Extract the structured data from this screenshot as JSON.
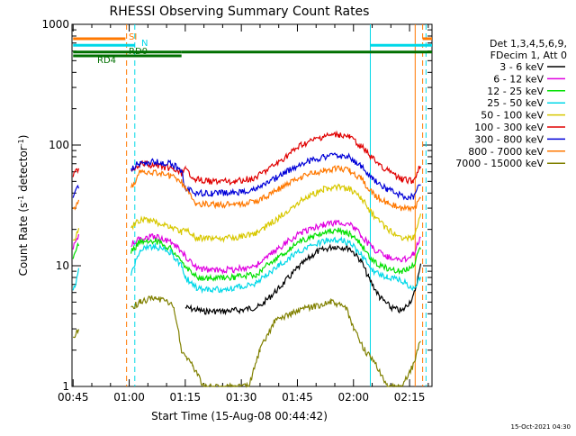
{
  "chart_data": {
    "type": "line",
    "title": "RHESSI Observing Summary Count Rates",
    "xlabel": "Start Time (15-Aug-08 00:44:42)",
    "ylabel_main": "Count Rate (s",
    "ylabel_sup1": "-1",
    "ylabel_mid": " detector",
    "ylabel_sup2": "-1",
    "ylabel_end": ")",
    "y_scale": "log",
    "ylim": [
      1,
      1000
    ],
    "xlim_minutes": [
      44.7,
      141
    ],
    "x_ticks": [
      {
        "m": 45,
        "label": "00:45"
      },
      {
        "m": 60,
        "label": "01:00"
      },
      {
        "m": 75,
        "label": "01:15"
      },
      {
        "m": 90,
        "label": "01:30"
      },
      {
        "m": 105,
        "label": "01:45"
      },
      {
        "m": 120,
        "label": "02:00"
      },
      {
        "m": 135,
        "label": "02:15"
      }
    ],
    "y_ticks": [
      {
        "v": 1,
        "label": "1"
      },
      {
        "v": 10,
        "label": "10"
      },
      {
        "v": 100,
        "label": "100"
      },
      {
        "v": 1000,
        "label": "1000"
      }
    ],
    "footer_date": "15-Oct-2021 04:30",
    "legend_header": [
      "Det 1,3,4,5,6,9,",
      "FDecim 1, Att 0"
    ],
    "series": [
      {
        "name": "3 - 6 keV",
        "color": "#000000",
        "segments": [
          [
            [
              75,
              4.5
            ],
            [
              80,
              4.2
            ],
            [
              85,
              4.2
            ],
            [
              90,
              4.3
            ],
            [
              95,
              4.6
            ],
            [
              100,
              6.5
            ],
            [
              105,
              9.5
            ],
            [
              110,
              13
            ],
            [
              115,
              14.5
            ],
            [
              119,
              14
            ],
            [
              122,
              11
            ],
            [
              124,
              8
            ],
            [
              127,
              5.5
            ],
            [
              130,
              4.5
            ],
            [
              133,
              4.2
            ],
            [
              136,
              5.5
            ],
            [
              138,
              10
            ]
          ]
        ]
      },
      {
        "name": "6 - 12 keV",
        "color": "#e000e0",
        "segments": [
          [
            [
              45,
              14
            ],
            [
              46.5,
              18
            ]
          ],
          [
            [
              60.5,
              15
            ],
            [
              63,
              17
            ],
            [
              67,
              17.5
            ],
            [
              71,
              16
            ],
            [
              74,
              13
            ],
            [
              75,
              12
            ],
            [
              78,
              9.5
            ],
            [
              82,
              9.2
            ],
            [
              88,
              9.3
            ],
            [
              94,
              10
            ],
            [
              100,
              14
            ],
            [
              106,
              19
            ],
            [
              112,
              22
            ],
            [
              116,
              23
            ],
            [
              119,
              22
            ],
            [
              122,
              18
            ],
            [
              125,
              14
            ],
            [
              129,
              12
            ],
            [
              133,
              11
            ],
            [
              136,
              12.5
            ],
            [
              138,
              18
            ]
          ]
        ]
      },
      {
        "name": "12 - 25 keV",
        "color": "#00e000",
        "segments": [
          [
            [
              45,
              12
            ],
            [
              46.5,
              15
            ]
          ],
          [
            [
              60.5,
              13
            ],
            [
              63,
              16
            ],
            [
              67,
              16
            ],
            [
              71,
              14
            ],
            [
              74,
              10.5
            ],
            [
              75,
              10
            ],
            [
              78,
              8
            ],
            [
              82,
              7.8
            ],
            [
              88,
              8
            ],
            [
              94,
              8.5
            ],
            [
              100,
              12
            ],
            [
              106,
              16
            ],
            [
              112,
              19
            ],
            [
              116,
              19.5
            ],
            [
              119,
              18.5
            ],
            [
              122,
              15
            ],
            [
              125,
              11
            ],
            [
              129,
              9.5
            ],
            [
              133,
              8.8
            ],
            [
              136,
              10
            ],
            [
              138,
              14
            ]
          ]
        ]
      },
      {
        "name": "25 - 50 keV",
        "color": "#00d8e8",
        "segments": [
          [
            [
              45,
              6
            ],
            [
              46.5,
              9
            ]
          ],
          [
            [
              60.5,
              8.5
            ],
            [
              63,
              14
            ],
            [
              67,
              14.5
            ],
            [
              71,
              13
            ],
            [
              74,
              10
            ],
            [
              75,
              8
            ],
            [
              78,
              6.5
            ],
            [
              82,
              6.3
            ],
            [
              88,
              6.5
            ],
            [
              94,
              7.2
            ],
            [
              100,
              10
            ],
            [
              106,
              13.5
            ],
            [
              112,
              16
            ],
            [
              116,
              16.5
            ],
            [
              119,
              15.5
            ],
            [
              122,
              12.5
            ],
            [
              125,
              9
            ],
            [
              129,
              8
            ],
            [
              133,
              7.5
            ],
            [
              136,
              6.5
            ],
            [
              138,
              8
            ]
          ]
        ]
      },
      {
        "name": "50 - 100 keV",
        "color": "#d8c800",
        "segments": [
          [
            [
              45,
              16
            ],
            [
              46.5,
              20
            ]
          ],
          [
            [
              60.5,
              21
            ],
            [
              63,
              24
            ],
            [
              67,
              23
            ],
            [
              71,
              21
            ],
            [
              74,
              19
            ],
            [
              75,
              20
            ],
            [
              78,
              17
            ],
            [
              82,
              16.8
            ],
            [
              88,
              17
            ],
            [
              94,
              18.5
            ],
            [
              100,
              25
            ],
            [
              106,
              35
            ],
            [
              112,
              43
            ],
            [
              116,
              45
            ],
            [
              119,
              43
            ],
            [
              122,
              37
            ],
            [
              125,
              27
            ],
            [
              129,
              20
            ],
            [
              133,
              17
            ],
            [
              136,
              17
            ],
            [
              138,
              26
            ]
          ]
        ]
      },
      {
        "name": "100 - 300 keV",
        "color": "#e00000",
        "segments": [
          [
            [
              45,
              55
            ],
            [
              46.5,
              65
            ]
          ],
          [
            [
              60.5,
              62
            ],
            [
              63,
              70
            ],
            [
              67,
              68
            ],
            [
              71,
              64
            ],
            [
              74,
              58
            ],
            [
              75,
              62
            ],
            [
              78,
              52
            ],
            [
              82,
              50
            ],
            [
              88,
              50
            ],
            [
              94,
              54
            ],
            [
              100,
              72
            ],
            [
              106,
              100
            ],
            [
              112,
              118
            ],
            [
              116,
              122
            ],
            [
              119,
              116
            ],
            [
              122,
              98
            ],
            [
              125,
              78
            ],
            [
              129,
              62
            ],
            [
              133,
              52
            ],
            [
              136,
              50
            ],
            [
              138,
              70
            ]
          ]
        ]
      },
      {
        "name": "300 - 800 keV",
        "color": "#0000d8",
        "segments": [
          [
            [
              45,
              38
            ],
            [
              46.5,
              46
            ]
          ],
          [
            [
              60.5,
              64
            ],
            [
              63,
              72
            ],
            [
              67,
              73
            ],
            [
              71,
              70
            ],
            [
              74,
              62
            ],
            [
              75,
              44
            ],
            [
              78,
              40
            ],
            [
              82,
              40
            ],
            [
              88,
              40
            ],
            [
              94,
              43
            ],
            [
              100,
              55
            ],
            [
              106,
              70
            ],
            [
              112,
              80
            ],
            [
              116,
              82
            ],
            [
              119,
              79
            ],
            [
              122,
              67
            ],
            [
              125,
              52
            ],
            [
              129,
              43
            ],
            [
              133,
              38
            ],
            [
              136,
              37
            ],
            [
              138,
              48
            ]
          ]
        ]
      },
      {
        "name": "800 - 7000 keV",
        "color": "#ff7800",
        "segments": [
          [
            [
              45,
              28
            ],
            [
              46.5,
              34
            ]
          ],
          [
            [
              60.5,
              44
            ],
            [
              63,
              60
            ],
            [
              67,
              59
            ],
            [
              71,
              56
            ],
            [
              74,
              50
            ],
            [
              75,
              44
            ],
            [
              78,
              33
            ],
            [
              82,
              32
            ],
            [
              88,
              32
            ],
            [
              94,
              34
            ],
            [
              100,
              43
            ],
            [
              106,
              54
            ],
            [
              112,
              62
            ],
            [
              116,
              64
            ],
            [
              119,
              61
            ],
            [
              122,
              53
            ],
            [
              125,
              40
            ],
            [
              129,
              33
            ],
            [
              133,
              30
            ],
            [
              136,
              29
            ],
            [
              138,
              36
            ]
          ]
        ]
      },
      {
        "name": "7000 - 15000 keV",
        "color": "#808000",
        "segments": [
          [
            [
              45,
              2.5
            ],
            [
              46.5,
              3
            ]
          ],
          [
            [
              60.5,
              4.5
            ],
            [
              63,
              5
            ],
            [
              67,
              5.5
            ],
            [
              70,
              5
            ],
            [
              72,
              4.5
            ],
            [
              74,
              2
            ],
            [
              77,
              1.5
            ],
            [
              80,
              1
            ],
            [
              88,
              1
            ],
            [
              92,
              1
            ],
            [
              95,
              2
            ],
            [
              99,
              3.5
            ],
            [
              103,
              4
            ],
            [
              108,
              4.5
            ],
            [
              114,
              5
            ],
            [
              118,
              4.5
            ],
            [
              120,
              3
            ],
            [
              123,
              2
            ],
            [
              126,
              1.5
            ],
            [
              129,
              1
            ],
            [
              133,
              1
            ],
            [
              136,
              1.5
            ],
            [
              138,
              2.5
            ]
          ]
        ]
      }
    ],
    "flag_bars": [
      {
        "label": "SI",
        "color": "#ff7800",
        "y_value": 760,
        "segments": [
          [
            45,
            59
          ],
          [
            138.5,
            141
          ]
        ]
      },
      {
        "label": "N",
        "color": "#00d8e8",
        "y_value": 670,
        "segments": [
          [
            45,
            61.5
          ],
          [
            124.5,
            141
          ]
        ]
      },
      {
        "label": "RD0",
        "color": "#007000",
        "y_value": 590,
        "segments": [
          [
            45,
            74
          ],
          [
            74,
            141
          ]
        ]
      },
      {
        "label": "RD4",
        "color": "#007000",
        "y_value": 548,
        "segments": [
          [
            45,
            74
          ]
        ]
      }
    ],
    "vlines": [
      {
        "m": 59.3,
        "color": "#ff7800",
        "style": "dashed"
      },
      {
        "m": 61.5,
        "color": "#00d8e8",
        "style": "dashed"
      },
      {
        "m": 124.5,
        "color": "#00d8e8",
        "style": "solid"
      },
      {
        "m": 136.5,
        "color": "#ff7800",
        "style": "solid"
      },
      {
        "m": 138.5,
        "color": "#ff7800",
        "style": "dashed"
      },
      {
        "m": 139.4,
        "color": "#00d8e8",
        "style": "dashed"
      }
    ]
  }
}
